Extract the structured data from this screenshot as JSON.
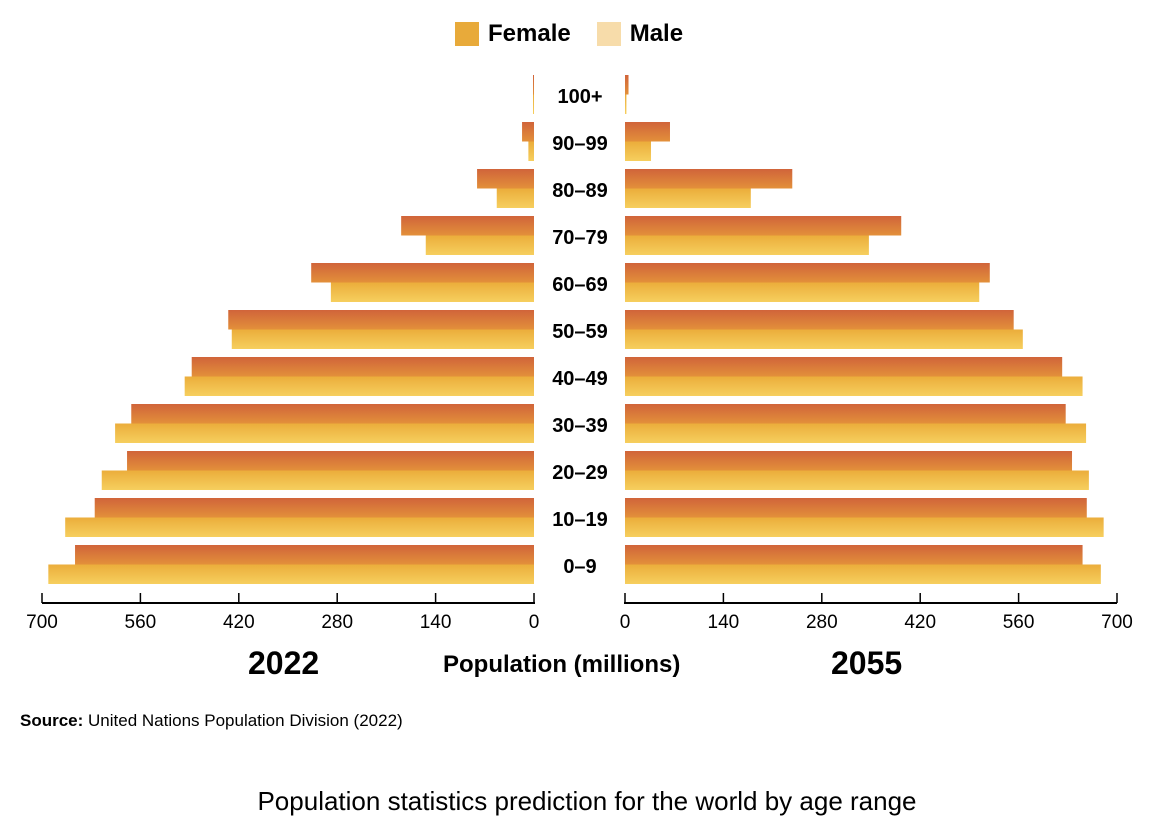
{
  "legend": [
    {
      "label": "Female",
      "color": "#e8aa3a"
    },
    {
      "label": "Male",
      "color": "#f7dcaa"
    }
  ],
  "chart_data": {
    "type": "bar",
    "orientation": "horizontal",
    "subtype": "population-pyramid",
    "categories": [
      "100+",
      "90–99",
      "80–89",
      "70–79",
      "60–69",
      "50–59",
      "40–49",
      "30–39",
      "20–29",
      "10–19",
      "0–9"
    ],
    "panels": [
      {
        "name": "2022",
        "side": "left",
        "series": [
          {
            "name": "Female",
            "values": [
              0.6,
              17,
              81,
              189,
              317,
              435,
              487,
              573,
              579,
              625,
              653
            ]
          },
          {
            "name": "Male",
            "values": [
              0.3,
              8,
              53,
              154,
              289,
              430,
              497,
              596,
              615,
              667,
              691
            ]
          }
        ]
      },
      {
        "name": "2055",
        "side": "right",
        "series": [
          {
            "name": "Female",
            "values": [
              5,
              64,
              238,
              393,
              519,
              553,
              622,
              627,
              636,
              657,
              651
            ]
          },
          {
            "name": "Male",
            "values": [
              2,
              37,
              179,
              347,
              504,
              566,
              651,
              656,
              660,
              681,
              677
            ]
          }
        ]
      }
    ],
    "xlabel": "Population (millions)",
    "xlim": [
      0,
      700
    ],
    "left_ticks": [
      "700",
      "560",
      "420",
      "280",
      "140",
      "0"
    ],
    "right_ticks": [
      "0",
      "140",
      "280",
      "420",
      "560",
      "700"
    ],
    "tick_values": [
      0,
      140,
      280,
      420,
      560,
      700
    ],
    "legend_position": "top-center",
    "grid": false,
    "colors": {
      "female_top": "#d0643a",
      "female_bottom": "#e3903a",
      "male_top": "#ebad3b",
      "male_bottom": "#f6cf5e"
    }
  },
  "year_left": "2022",
  "year_right": "2055",
  "source": {
    "label": "Source:",
    "text": " United Nations Population Division (2022)"
  },
  "caption": "Population statistics prediction for the world by age range"
}
